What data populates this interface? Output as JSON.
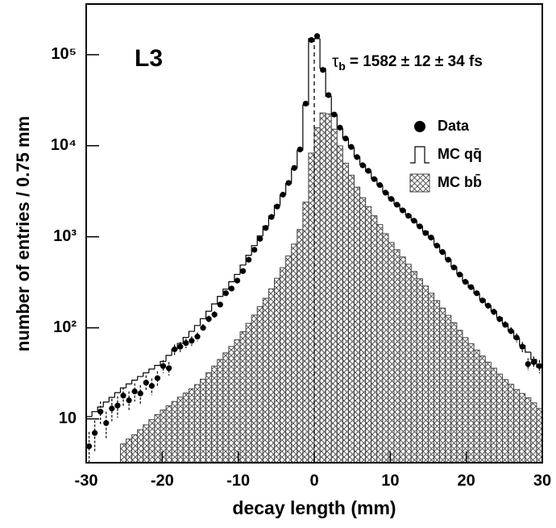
{
  "chart_data": {
    "type": "histogram",
    "xlabel": "decay length (mm)",
    "ylabel": "number of entries / 0.75 mm",
    "annotations": {
      "experiment": "L3",
      "result_symbol": "τ",
      "result_subscript": "b",
      "result_text": "= 1582 ± 12 ± 34 fs"
    },
    "bins": [
      -30,
      -29.25,
      -28.5,
      -27.75,
      -27,
      -26.25,
      -25.5,
      -24.75,
      -24,
      -23.25,
      -22.5,
      -21.75,
      -21,
      -20.25,
      -19.5,
      -18.75,
      -18,
      -17.25,
      -16.5,
      -15.75,
      -15,
      -14.25,
      -13.5,
      -12.75,
      -12,
      -11.25,
      -10.5,
      -9.75,
      -9,
      -8.25,
      -7.5,
      -6.75,
      -6,
      -5.25,
      -4.5,
      -3.75,
      -3,
      -2.25,
      -1.5,
      -0.75,
      0,
      0.75,
      1.5,
      2.25,
      3,
      3.75,
      4.5,
      5.25,
      6,
      6.75,
      7.5,
      8.25,
      9,
      9.75,
      10.5,
      11.25,
      12,
      12.75,
      13.5,
      14.25,
      15,
      15.75,
      16.5,
      17.25,
      18,
      18.75,
      19.5,
      20.25,
      21,
      21.75,
      22.5,
      23.25,
      24,
      24.75,
      25.5,
      26.25,
      27,
      27.75,
      28.5,
      29.25,
      30
    ],
    "series": [
      {
        "name": "MC bb̄",
        "style": "hatched",
        "color": "#444444",
        "values": [
          null,
          null,
          null,
          null,
          null,
          null,
          5.3,
          6.0,
          6.7,
          7.6,
          8.6,
          9.8,
          11.1,
          12.5,
          13.9,
          15.5,
          17.3,
          19.2,
          21.4,
          23.8,
          27.3,
          32.2,
          38,
          44.9,
          53,
          62.5,
          73.8,
          90.6,
          112,
          138,
          171,
          211,
          268,
          350,
          458,
          615,
          832,
          1200,
          2400,
          8300,
          15800,
          22900,
          22400,
          15200,
          9970,
          6430,
          4750,
          3510,
          2690,
          2140,
          1700,
          1360,
          1080,
          865,
          720,
          600,
          499,
          416,
          346,
          288,
          240,
          199,
          165,
          137,
          114,
          94,
          78,
          67,
          57,
          49,
          42,
          36,
          31,
          27,
          24,
          21,
          19,
          17,
          15,
          13
        ]
      },
      {
        "name": "MC qq̄",
        "style": "step",
        "color": "#000000",
        "values": [
          10.6,
          12,
          13.5,
          15.3,
          17.2,
          19.4,
          21.9,
          24.2,
          26.6,
          29.2,
          32,
          35.2,
          38.6,
          42.8,
          49.8,
          58,
          67.5,
          78.5,
          91.4,
          106,
          126,
          152,
          183,
          221,
          266,
          321,
          386,
          489,
          625,
          800,
          1020,
          1310,
          1690,
          2210,
          2890,
          3850,
          5620,
          8900,
          28000,
          150000,
          150000,
          71000,
          35000,
          22200,
          15600,
          12100,
          9600,
          7600,
          6200,
          5220,
          4390,
          3700,
          3110,
          2630,
          2290,
          2000,
          1740,
          1510,
          1320,
          1150,
          977,
          815,
          678,
          565,
          470,
          392,
          326,
          279,
          239,
          206,
          177,
          152,
          130,
          111,
          93,
          77,
          64,
          54,
          45,
          37
        ]
      },
      {
        "name": "Data",
        "style": "points",
        "color": "#000000",
        "values": [
          5,
          7,
          12,
          9,
          13,
          14,
          18,
          16,
          20,
          19,
          25,
          23,
          28,
          38,
          36,
          58,
          62,
          68,
          72,
          80,
          100,
          125,
          140,
          180,
          240,
          270,
          330,
          420,
          560,
          720,
          950,
          1250,
          1650,
          2150,
          2900,
          3900,
          5700,
          9100,
          29000,
          145000,
          160000,
          68000,
          36000,
          22000,
          15800,
          12000,
          9700,
          7500,
          6100,
          5300,
          4300,
          3700,
          3050,
          2600,
          2250,
          1950,
          1700,
          1500,
          1300,
          1100,
          980,
          800,
          680,
          560,
          460,
          385,
          320,
          280,
          240,
          200,
          175,
          150,
          125,
          108,
          92,
          78,
          62,
          40,
          42,
          38
        ],
        "errors": [
          2.2,
          2.6,
          3.5,
          3,
          3.6,
          3.7,
          4.2,
          4,
          4.5,
          4.4,
          5,
          4.8,
          5.3,
          6.2,
          6,
          7.6,
          7.9,
          8.2,
          8.5,
          8.9,
          10,
          11,
          12,
          13,
          15,
          16,
          18,
          20,
          24,
          27,
          31,
          35,
          41,
          46,
          54,
          62,
          75,
          95,
          170,
          380,
          400,
          260,
          190,
          150,
          126,
          110,
          98,
          87,
          78,
          73,
          66,
          61,
          55,
          51,
          47,
          44,
          41,
          39,
          36,
          33,
          31,
          28,
          26,
          24,
          21,
          20,
          18,
          17,
          15,
          14,
          13,
          12,
          11,
          10,
          9.6,
          8.8,
          7.9,
          6.3,
          6.5,
          6.2
        ]
      }
    ],
    "xlim": [
      -30,
      30
    ],
    "xticks": [
      -30,
      -20,
      -10,
      0,
      10,
      20,
      30
    ],
    "ylim": [
      3.3,
      360000
    ],
    "ylog": true,
    "yticks": [
      10,
      {
        "value": 100,
        "label": "10²"
      },
      {
        "value": 1000,
        "label": "10³"
      },
      {
        "value": 10000,
        "label": "10⁴"
      },
      {
        "value": 100000,
        "label": "10⁵"
      }
    ],
    "grid": false
  }
}
